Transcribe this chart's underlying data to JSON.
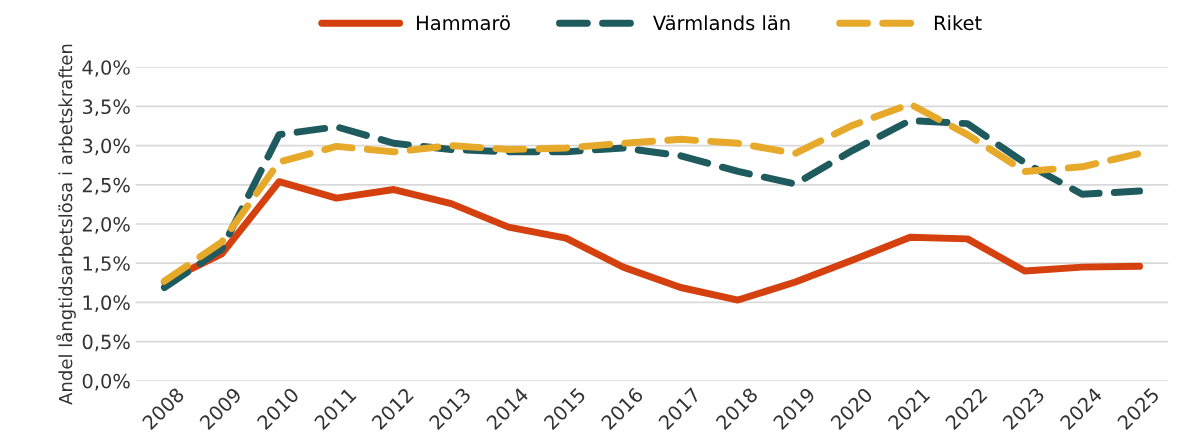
{
  "chart_data": {
    "type": "line",
    "ylabel": "Andel långtidsarbetslösa i arbetskraften",
    "categories": [
      "2008",
      "2009",
      "2010",
      "2011",
      "2012",
      "2013",
      "2014",
      "2015",
      "2016",
      "2017",
      "2018",
      "2019",
      "2020",
      "2021",
      "2022",
      "2023",
      "2024",
      "2025"
    ],
    "series": [
      {
        "name": "Hammarö",
        "color": "#d5400f",
        "line_style": "solid",
        "values": [
          1.26,
          1.62,
          2.54,
          2.33,
          2.44,
          2.26,
          1.96,
          1.82,
          1.45,
          1.19,
          1.03,
          1.26,
          1.54,
          1.83,
          1.81,
          1.4,
          1.45,
          1.46
        ]
      },
      {
        "name": "Värmlands län",
        "color": "#1f5a5e",
        "line_style": "dashed",
        "values": [
          1.19,
          1.68,
          3.14,
          3.24,
          3.03,
          2.95,
          2.92,
          2.92,
          2.97,
          2.87,
          2.67,
          2.51,
          2.94,
          3.32,
          3.28,
          2.78,
          2.38,
          2.42
        ]
      },
      {
        "name": "Riket",
        "color": "#e6a92a",
        "line_style": "dashed",
        "values": [
          1.27,
          1.77,
          2.79,
          2.99,
          2.92,
          3.0,
          2.95,
          2.97,
          3.03,
          3.08,
          3.03,
          2.9,
          3.26,
          3.53,
          3.14,
          2.67,
          2.73,
          2.9
        ]
      }
    ],
    "ylim": [
      0,
      4.0
    ],
    "yticks": [
      {
        "value": 0,
        "label": "0,0%"
      },
      {
        "value": 0.5,
        "label": "0,5%"
      },
      {
        "value": 1.0,
        "label": "1,0%"
      },
      {
        "value": 1.5,
        "label": "1,5%"
      },
      {
        "value": 2.0,
        "label": "2,0%"
      },
      {
        "value": 2.5,
        "label": "2,5%"
      },
      {
        "value": 3.0,
        "label": "3,0%"
      },
      {
        "value": 3.5,
        "label": "3,5%"
      },
      {
        "value": 4.0,
        "label": "4,0%"
      }
    ],
    "grid": "y",
    "legend": "top",
    "marker": "none"
  }
}
